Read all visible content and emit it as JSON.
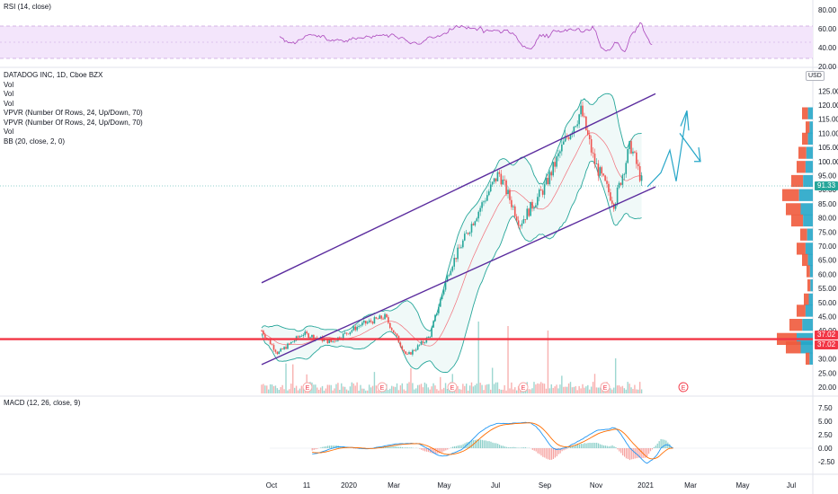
{
  "panes": {
    "rsi": {
      "label": "RSI (14, close)",
      "ticks": [
        "80.00",
        "60.00",
        "40.00",
        "20.00"
      ]
    },
    "main": {
      "legend": [
        "DATADOG INC, 1D, Cboe BZX",
        "Vol",
        "Vol",
        "Vol",
        "VPVR (Number Of Rows, 24, Up/Down, 70)",
        "VPVR (Number Of Rows, 24, Up/Down, 70)",
        "Vol",
        "BB (20, close, 2, 0)"
      ],
      "currency": "USD",
      "ticks": [
        "125.00",
        "120.00",
        "115.00",
        "110.00",
        "105.00",
        "100.00",
        "95.00",
        "90.00",
        "85.00",
        "80.00",
        "75.00",
        "70.00",
        "65.00",
        "60.00",
        "55.00",
        "50.00",
        "45.00",
        "40.00",
        "35.00",
        "30.00",
        "25.00",
        "20.00"
      ],
      "last_price": "91.33",
      "level_price_a": "37.02",
      "level_price_b": "37.02"
    },
    "macd": {
      "label": "MACD (12, 26, close, 9)",
      "ticks": [
        "7.50",
        "5.00",
        "2.50",
        "0.00",
        "-2.50"
      ]
    }
  },
  "time_axis": [
    "Oct",
    "11",
    "2020",
    "Mar",
    "May",
    "Jul",
    "Sep",
    "Nov",
    "2021",
    "Mar",
    "May",
    "Jul"
  ],
  "earnings_marker": "E",
  "chart_data": {
    "type": "line",
    "title": "DATADOG INC, 1D, Cboe BZX",
    "price_range": [
      20,
      127
    ],
    "price_series": {
      "name": "DATADOG INC",
      "x": [
        "2019-09-20",
        "2019-10-10",
        "2019-11-10",
        "2019-12-15",
        "2020-01-20",
        "2020-02-20",
        "2020-03-18",
        "2020-04-15",
        "2020-05-10",
        "2020-06-10",
        "2020-07-10",
        "2020-08-05",
        "2020-09-05",
        "2020-10-01",
        "2020-10-20",
        "2020-11-05",
        "2020-11-30",
        "2020-12-20",
        "2021-01-05"
      ],
      "y": [
        40,
        32,
        39,
        36,
        42,
        45,
        31,
        38,
        62,
        80,
        96,
        78,
        91,
        108,
        118,
        100,
        85,
        106,
        91
      ]
    },
    "horizontal_level": 37.02,
    "last_price": 91.33,
    "channel": {
      "upper": {
        "x": [
          "2019-09-20",
          "2021-01-20"
        ],
        "y": [
          57,
          124
        ]
      },
      "lower": {
        "x": [
          "2019-09-20",
          "2021-01-20"
        ],
        "y": [
          28,
          91
        ]
      }
    },
    "rsi_range": [
      20,
      80
    ],
    "macd_range": [
      -4,
      8.5
    ]
  }
}
